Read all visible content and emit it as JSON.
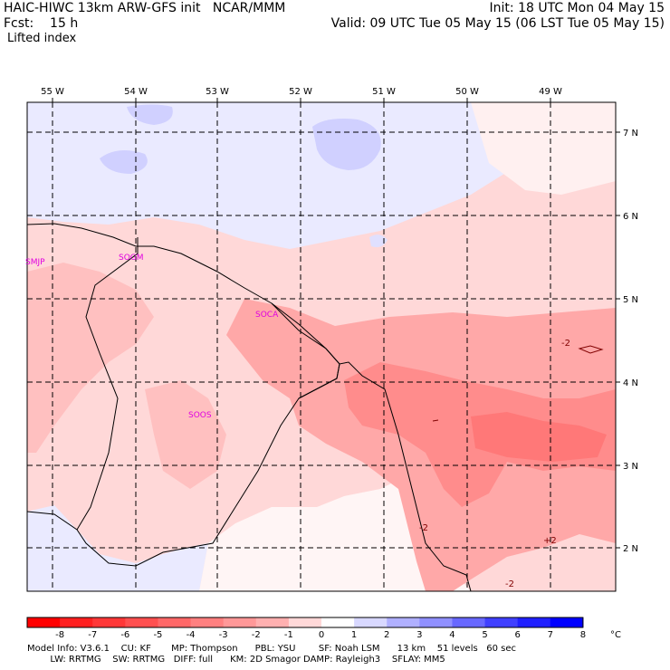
{
  "header": {
    "model_line": "HAIC-HIWC 13km ARW-GFS init   NCAR/MMM",
    "fcst_label": "Fcst:    15 h",
    "field_name": "Lifted index",
    "init_line": "Init: 18 UTC Mon 04 May 15",
    "valid_line": "Valid: 09 UTC Tue 05 May 15 (06 LST Tue 05 May 15)"
  },
  "map": {
    "longitude_labels": [
      "55 W",
      "54 W",
      "53 W",
      "52 W",
      "51 W",
      "50 W",
      "49 W"
    ],
    "latitude_labels": [
      "7 N",
      "6 N",
      "5 N",
      "4 N",
      "3 N",
      "2 N"
    ],
    "stations": [
      "SMJP",
      "SOGM",
      "SOCA",
      "SOOS"
    ],
    "contour_labels": [
      "-2",
      "-2",
      "+2",
      "-2"
    ]
  },
  "legend": {
    "unit": "°C",
    "tick_labels": [
      "-8",
      "-7",
      "-6",
      "-5",
      "-4",
      "-3",
      "-2",
      "-1",
      "0",
      "1",
      "2",
      "3",
      "4",
      "5",
      "6",
      "7",
      "8"
    ],
    "colors": [
      "#ff0000",
      "#ff2020",
      "#ff3838",
      "#ff5050",
      "#ff6868",
      "#ff8080",
      "#ff9898",
      "#ffb0b0",
      "#ffd8d8",
      "#ffffff",
      "#d8d8ff",
      "#b0b0ff",
      "#9090ff",
      "#6868ff",
      "#4040ff",
      "#2020ff",
      "#0000ff"
    ]
  },
  "footer": {
    "line1": "Model Info: V3.6.1    CU: KF       MP: Thompson      PBL: YSU        SF: Noah LSM      13 km    51 levels   60 sec",
    "line2": "        LW: RRTMG    SW: RRTMG   DIFF: full      KM: 2D Smagor DAMP: Rayleigh3    SFLAY: MM5"
  }
}
